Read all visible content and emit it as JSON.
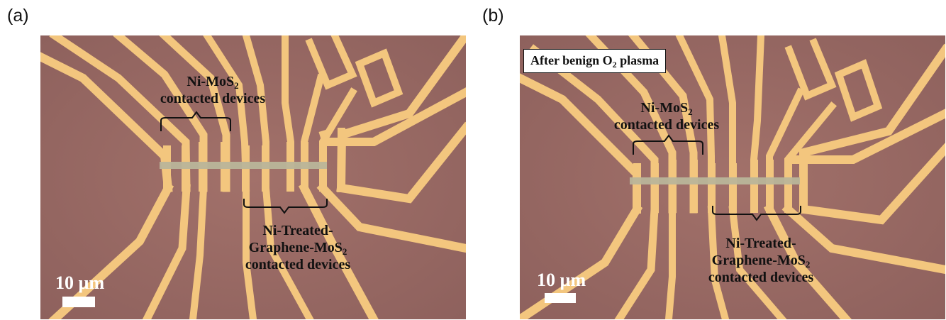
{
  "panels": [
    {
      "label": "(a)",
      "ni_mos2": {
        "line1_pre": "Ni-MoS",
        "line1_sub": "2",
        "line2": "contacted devices"
      },
      "treated": {
        "line1": "Ni-Treated-",
        "line2_pre": "Graphene-MoS",
        "line2_sub": "2",
        "line3": "contacted devices"
      },
      "scale": "10 µm"
    },
    {
      "label": "(b)",
      "plasma": {
        "pre": "After benign O",
        "sub": "2",
        "post": " plasma"
      },
      "ni_mos2": {
        "line1_pre": "Ni-MoS",
        "line1_sub": "2",
        "line2": "contacted devices"
      },
      "treated": {
        "line1": "Ni-Treated-",
        "line2_pre": "Graphene-MoS",
        "line2_sub": "2",
        "line3": "contacted devices"
      },
      "scale": "10 µm"
    }
  ],
  "colors": {
    "substrate": "#9b6c66",
    "gold": "#f3c67e",
    "flake": "#b9b59a",
    "annotation": "#111111",
    "scale": "#ffffff"
  }
}
